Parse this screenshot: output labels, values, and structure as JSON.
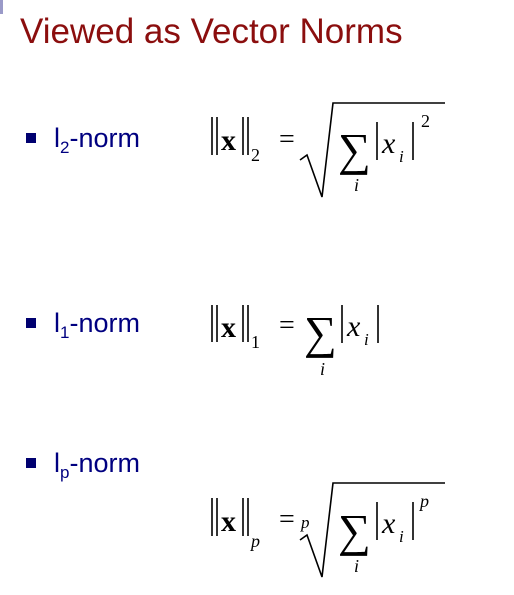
{
  "slide": {
    "title": "Viewed as Vector Norms"
  },
  "norms": [
    {
      "label_main": "l",
      "label_sub": "2",
      "label_suffix": "-norm",
      "symbol": "x",
      "subscript": "2",
      "equals": "=",
      "sum": "∑",
      "sum_index": "i",
      "element": "x",
      "element_index": "i",
      "power": "2"
    },
    {
      "label_main": "l",
      "label_sub": "1",
      "label_suffix": "-norm",
      "symbol": "x",
      "subscript": "1",
      "equals": "=",
      "sum": "∑",
      "sum_index": "i",
      "element": "x",
      "element_index": "i"
    },
    {
      "label_main": "l",
      "label_sub": "p",
      "label_suffix": "-norm",
      "symbol": "x",
      "subscript": "p",
      "equals": "=",
      "root_index": "p",
      "sum": "∑",
      "sum_index": "i",
      "element": "x",
      "element_index": "i",
      "power": "p"
    }
  ]
}
